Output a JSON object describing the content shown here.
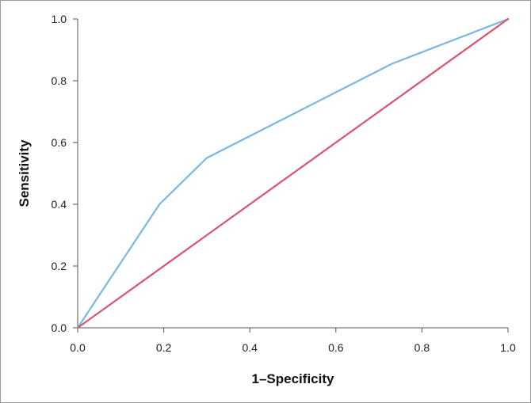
{
  "chart_data": {
    "type": "line",
    "xlabel": "1–Specificity",
    "ylabel": "Sensitivity",
    "xlim": [
      0.0,
      1.0
    ],
    "ylim": [
      0.0,
      1.0
    ],
    "x_ticks": [
      "0.0",
      "0.2",
      "0.4",
      "0.6",
      "0.8",
      "1.0"
    ],
    "y_ticks": [
      "0.0",
      "0.2",
      "0.4",
      "0.6",
      "0.8",
      "1.0"
    ],
    "grid": false,
    "legend": "none",
    "series": [
      {
        "color": "#7ab8e2",
        "points": [
          [
            0.0,
            0.0
          ],
          [
            0.19,
            0.4
          ],
          [
            0.3,
            0.55
          ],
          [
            0.73,
            0.855
          ],
          [
            1.0,
            1.0
          ]
        ]
      },
      {
        "color": "#d9546e",
        "points": [
          [
            0.0,
            0.0
          ],
          [
            1.0,
            1.0
          ]
        ]
      }
    ],
    "axis_color": "#555555"
  }
}
